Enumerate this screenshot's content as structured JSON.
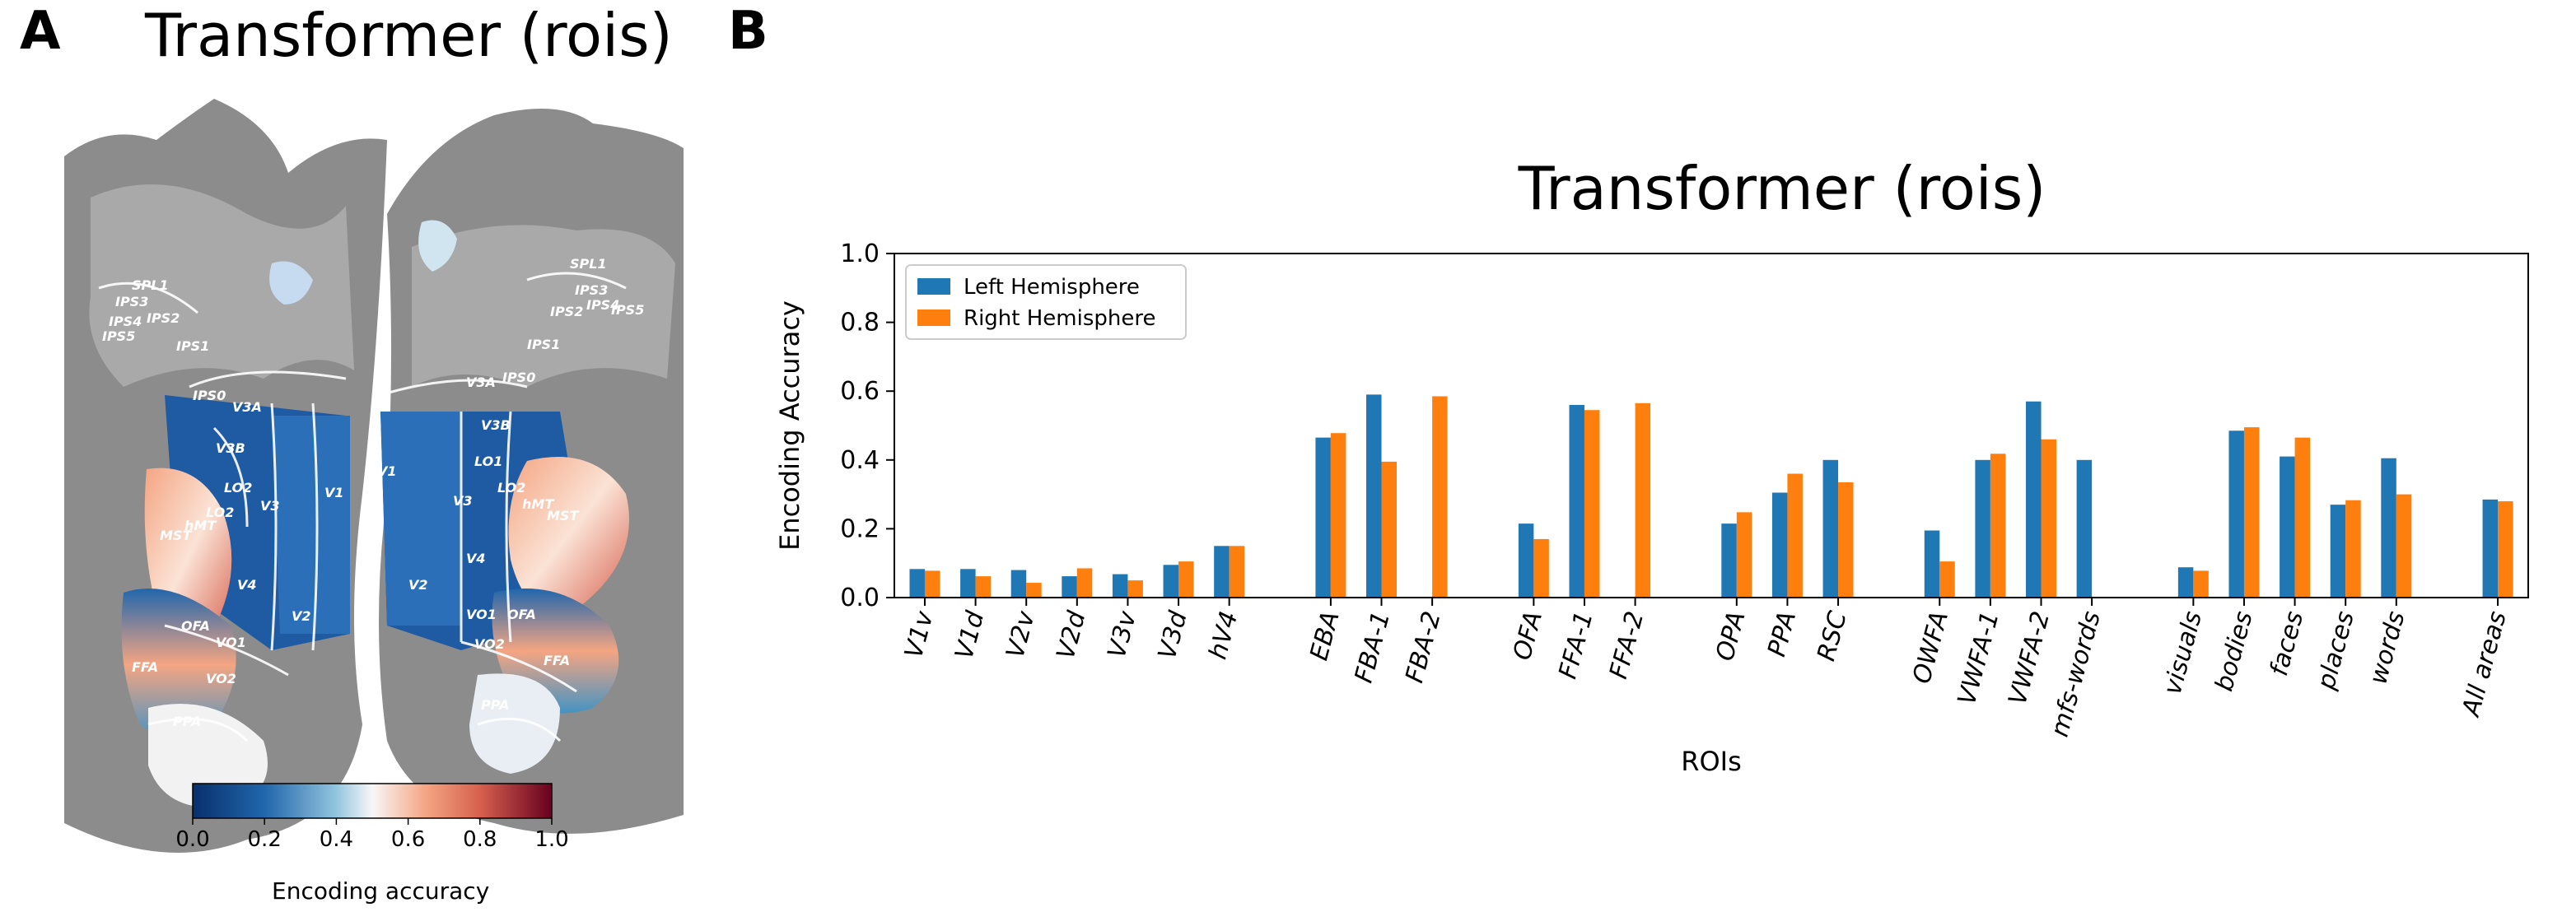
{
  "panel_a": {
    "letter": "A",
    "title": "Transformer (rois)",
    "left_labels": [
      "SPL1",
      "IPS3",
      "IPS2",
      "IPS4",
      "IPS5",
      "IPS1",
      "IPS0",
      "V3A",
      "V3B",
      "LO2",
      "LO2",
      "hMT",
      "MST",
      "V3",
      "V1",
      "V4",
      "V2",
      "OFA",
      "VO1",
      "FFA",
      "VO2",
      "PPA"
    ],
    "right_labels": [
      "SPL1",
      "IPS3",
      "IPS2",
      "IPS4",
      "IPS5",
      "IPS1",
      "V3A",
      "IPS0",
      "V3B",
      "LO1",
      "LO2",
      "hMT",
      "MST",
      "V1",
      "V3",
      "V4",
      "V2",
      "VO1",
      "OFA",
      "VO2",
      "FFA",
      "PPA"
    ],
    "colorbar": {
      "ticks": [
        "0.0",
        "0.2",
        "0.4",
        "0.6",
        "0.8",
        "1.0"
      ],
      "label": "Encoding accuracy",
      "colors": [
        "#08306b",
        "#2166ac",
        "#92c5de",
        "#f7f7f7",
        "#f4a582",
        "#d6604d",
        "#67001f"
      ]
    }
  },
  "panel_b": {
    "letter": "B"
  },
  "chart_data": {
    "type": "bar",
    "title": "Transformer (rois)",
    "xlabel": "ROIs",
    "ylabel": "Encoding Accuracy",
    "ylim": [
      0,
      1.0
    ],
    "yticks": [
      "0.0",
      "0.2",
      "0.4",
      "0.6",
      "0.8",
      "1.0"
    ],
    "legend_position": "top-left",
    "categories": [
      "V1v",
      "V1d",
      "V2v",
      "V2d",
      "V3v",
      "V3d",
      "hV4",
      "EBA",
      "FBA-1",
      "FBA-2",
      "OFA",
      "FFA-1",
      "FFA-2",
      "OPA",
      "PPA",
      "RSC",
      "OWFA",
      "VWFA-1",
      "VWFA-2",
      "mfs-words",
      "visuals",
      "bodies",
      "faces",
      "places",
      "words",
      "All areas"
    ],
    "groups": [
      7,
      3,
      3,
      3,
      4,
      5,
      1
    ],
    "series": [
      {
        "name": "Left Hemisphere",
        "color": "#1f77b4",
        "values": [
          0.083,
          0.083,
          0.08,
          0.062,
          0.068,
          0.095,
          0.15,
          0.465,
          0.59,
          null,
          0.215,
          0.56,
          null,
          0.215,
          0.305,
          0.4,
          0.195,
          0.4,
          0.57,
          0.4,
          0.088,
          0.485,
          0.41,
          0.27,
          0.405,
          0.285
        ]
      },
      {
        "name": "Right Hemisphere",
        "color": "#ff7f0e",
        "values": [
          0.078,
          0.062,
          0.043,
          0.085,
          0.05,
          0.105,
          0.15,
          0.478,
          0.395,
          0.585,
          0.17,
          0.545,
          0.565,
          0.248,
          0.36,
          0.335,
          0.105,
          0.418,
          0.46,
          null,
          0.078,
          0.495,
          0.465,
          0.283,
          0.3,
          0.28
        ]
      }
    ]
  }
}
